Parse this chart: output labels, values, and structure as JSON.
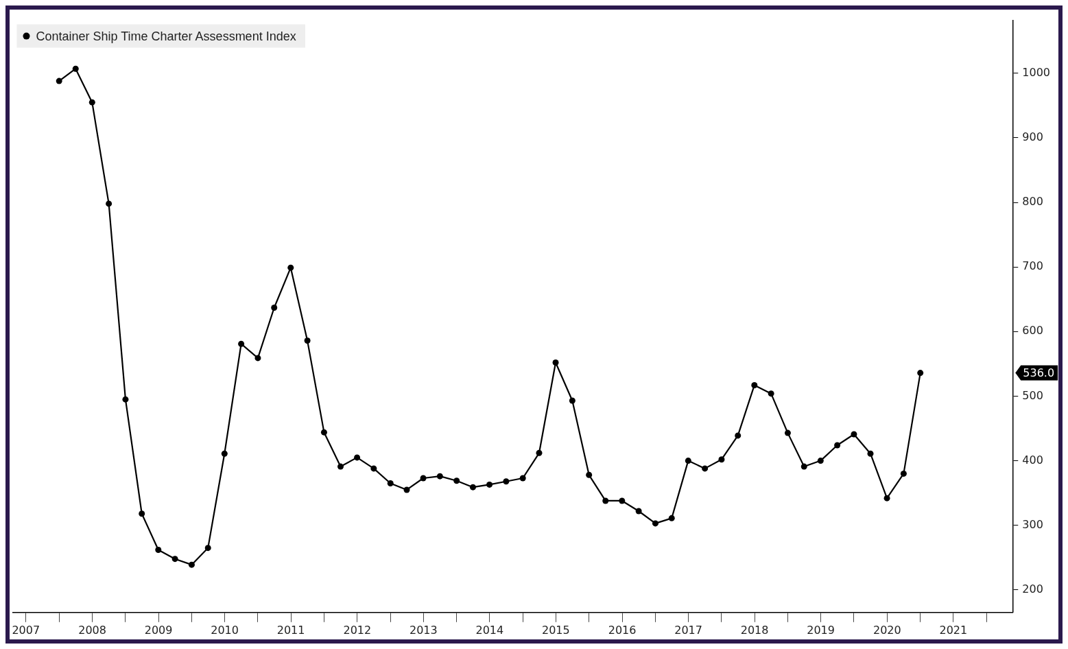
{
  "chart_data": {
    "type": "line",
    "x": [
      "2008-01",
      "2008-04",
      "2008-07",
      "2008-10",
      "2009-01",
      "2009-04",
      "2009-07",
      "2009-10",
      "2010-01",
      "2010-04",
      "2010-07",
      "2010-10",
      "2011-01",
      "2011-04",
      "2011-07",
      "2011-10",
      "2012-01",
      "2012-04",
      "2012-07",
      "2012-10",
      "2013-01",
      "2013-04",
      "2013-07",
      "2013-10",
      "2014-01",
      "2014-04",
      "2014-07",
      "2014-10",
      "2015-01",
      "2015-04",
      "2015-07",
      "2015-10",
      "2016-01",
      "2016-04",
      "2016-07",
      "2016-10",
      "2017-01",
      "2017-04",
      "2017-07",
      "2017-10",
      "2018-01",
      "2018-04",
      "2018-07",
      "2018-10",
      "2019-01",
      "2019-04",
      "2019-07",
      "2019-10",
      "2020-01",
      "2020-04",
      "2020-07",
      "2020-10",
      "2021-01"
    ],
    "series": [
      {
        "name": "Container Ship Time Charter Assessment Index",
        "color": "#000000",
        "values": [
          988,
          1007,
          955,
          798,
          495,
          318,
          262,
          248,
          239,
          265,
          411,
          581,
          559,
          637,
          699,
          586,
          444,
          391,
          405,
          388,
          365,
          355,
          373,
          376,
          369,
          359,
          363,
          368,
          373,
          412,
          552,
          493,
          378,
          338,
          338,
          322,
          303,
          311,
          400,
          388,
          402,
          439,
          517,
          504,
          443,
          391,
          400,
          424,
          441,
          411,
          342,
          380,
          536
        ]
      }
    ],
    "xlim": [
      "2007-04-20",
      "2022-05-25"
    ],
    "xticks": [
      {
        "value": "2007-07-02",
        "label": "2007"
      },
      {
        "value": "2008-07-02",
        "label": "2008"
      },
      {
        "value": "2009-07-02",
        "label": "2009"
      },
      {
        "value": "2010-07-02",
        "label": "2010"
      },
      {
        "value": "2011-07-02",
        "label": "2011"
      },
      {
        "value": "2012-07-02",
        "label": "2012"
      },
      {
        "value": "2013-07-02",
        "label": "2013"
      },
      {
        "value": "2014-07-02",
        "label": "2014"
      },
      {
        "value": "2015-07-02",
        "label": "2015"
      },
      {
        "value": "2016-07-02",
        "label": "2016"
      },
      {
        "value": "2017-07-02",
        "label": "2017"
      },
      {
        "value": "2018-07-02",
        "label": "2018"
      },
      {
        "value": "2019-07-02",
        "label": "2019"
      },
      {
        "value": "2020-07-02",
        "label": "2020"
      },
      {
        "value": "2021-07-02",
        "label": "2021"
      },
      {
        "value": "2008-01-01",
        "label": null
      },
      {
        "value": "2009-01-01",
        "label": null
      },
      {
        "value": "2010-01-01",
        "label": null
      },
      {
        "value": "2011-01-01",
        "label": null
      },
      {
        "value": "2012-01-01",
        "label": null
      },
      {
        "value": "2013-01-01",
        "label": null
      },
      {
        "value": "2014-01-01",
        "label": null
      },
      {
        "value": "2015-01-01",
        "label": null
      },
      {
        "value": "2016-01-01",
        "label": null
      },
      {
        "value": "2017-01-01",
        "label": null
      },
      {
        "value": "2018-01-01",
        "label": null
      },
      {
        "value": "2019-01-01",
        "label": null
      },
      {
        "value": "2020-01-01",
        "label": null
      },
      {
        "value": "2021-01-01",
        "label": null
      },
      {
        "value": "2022-01-01",
        "label": null
      }
    ],
    "ylim": [
      165,
      1082
    ],
    "yticks": [
      200,
      300,
      400,
      500,
      600,
      700,
      800,
      900,
      1000
    ],
    "annotations": [
      "536.0"
    ],
    "legend": "top left",
    "marker": "circle",
    "line_style": "solid",
    "grid": false
  }
}
